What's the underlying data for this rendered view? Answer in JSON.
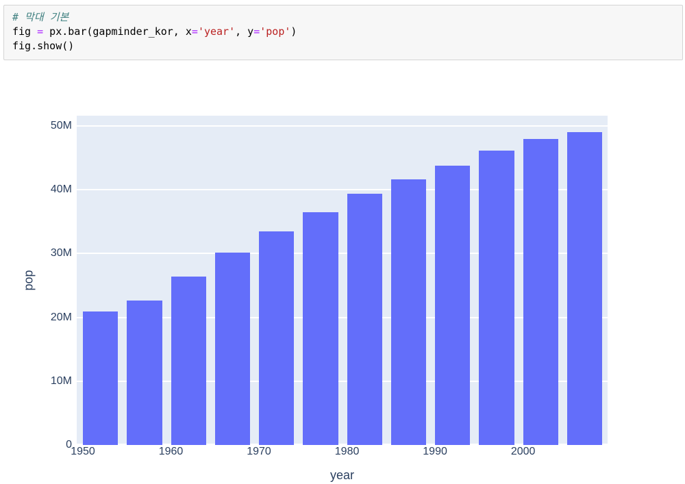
{
  "code_cell": {
    "token_colors": {
      "comment": "#408080",
      "operator": "#AA22FF",
      "string": "#BA2121",
      "plain": "#000000"
    },
    "lines": [
      {
        "tokens": [
          {
            "text": "# 막대 기본",
            "type": "comment"
          }
        ]
      },
      {
        "tokens": [
          {
            "text": "fig ",
            "type": "plain"
          },
          {
            "text": "=",
            "type": "operator"
          },
          {
            "text": " px.bar(gapminder_kor, x",
            "type": "plain"
          },
          {
            "text": "=",
            "type": "operator"
          },
          {
            "text": "'year'",
            "type": "string"
          },
          {
            "text": ", y",
            "type": "plain"
          },
          {
            "text": "=",
            "type": "operator"
          },
          {
            "text": "'pop'",
            "type": "string"
          },
          {
            "text": ")",
            "type": "plain"
          }
        ]
      },
      {
        "tokens": [
          {
            "text": "fig.show()",
            "type": "plain"
          }
        ]
      }
    ]
  },
  "chart_data": {
    "type": "bar",
    "title": "",
    "xlabel": "year",
    "ylabel": "pop",
    "x": [
      1952,
      1957,
      1962,
      1967,
      1972,
      1977,
      1982,
      1987,
      1992,
      1997,
      2002,
      2007
    ],
    "values": [
      20947571,
      22611552,
      26420307,
      30131000,
      33505000,
      36436000,
      39326000,
      41622000,
      43805450,
      46173816,
      47969150,
      49044790
    ],
    "series_name": "pop",
    "xlim": [
      1949.3,
      2009.6
    ],
    "ylim": [
      0,
      51600000
    ],
    "x_ticks": {
      "vals": [
        1950,
        1960,
        1970,
        1980,
        1990,
        2000
      ],
      "labels": [
        "1950",
        "1960",
        "1970",
        "1980",
        "1990",
        "2000"
      ]
    },
    "y_ticks": {
      "vals": [
        0,
        10000000,
        20000000,
        30000000,
        40000000,
        50000000
      ],
      "labels": [
        "0",
        "10M",
        "20M",
        "30M",
        "40M",
        "50M"
      ]
    },
    "bar_width_years": 4,
    "bar_color": "#636efa",
    "plot_bg": "#e5ecf6",
    "grid_color": "#ffffff",
    "label_color": "#2a3f5f",
    "legend": "off",
    "grid": "horizontal-only"
  }
}
